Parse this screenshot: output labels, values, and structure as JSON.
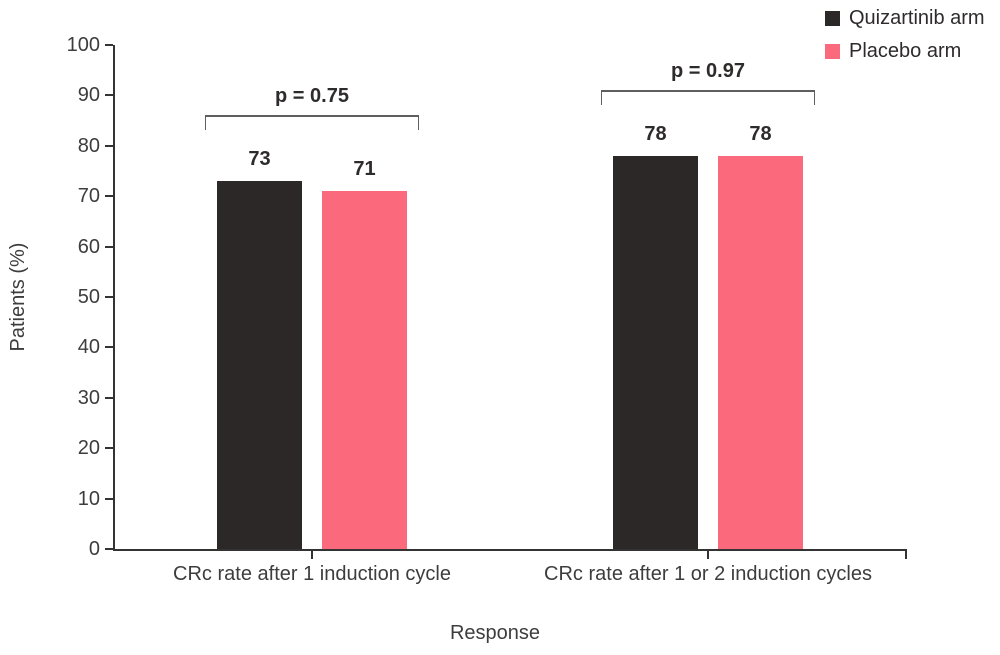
{
  "chart_data": {
    "type": "bar",
    "title": "",
    "xlabel": "Response",
    "ylabel": "Patients (%)",
    "ylim": [
      0,
      100
    ],
    "yticks": [
      0,
      10,
      20,
      30,
      40,
      50,
      60,
      70,
      80,
      90,
      100
    ],
    "categories": [
      "CRc rate after 1 induction cycle",
      "CRc rate after 1 or 2 induction cycles"
    ],
    "series": [
      {
        "name": "Quizartinib arm",
        "color": "#2b2827",
        "values": [
          73,
          78
        ]
      },
      {
        "name": "Placebo arm",
        "color": "#fa6a7c",
        "values": [
          71,
          78
        ]
      }
    ],
    "annotations": {
      "p_values": [
        "p = 0.75",
        "p = 0.97"
      ]
    },
    "legend_position": "top-right",
    "grid": false,
    "bar_value_labels": true
  },
  "colors": {
    "background": "#ffffff",
    "axis": "#333333",
    "label_text": "#3d3d3d",
    "strong_text": "#2e2b2b",
    "bracket": "#5f5f5f"
  }
}
